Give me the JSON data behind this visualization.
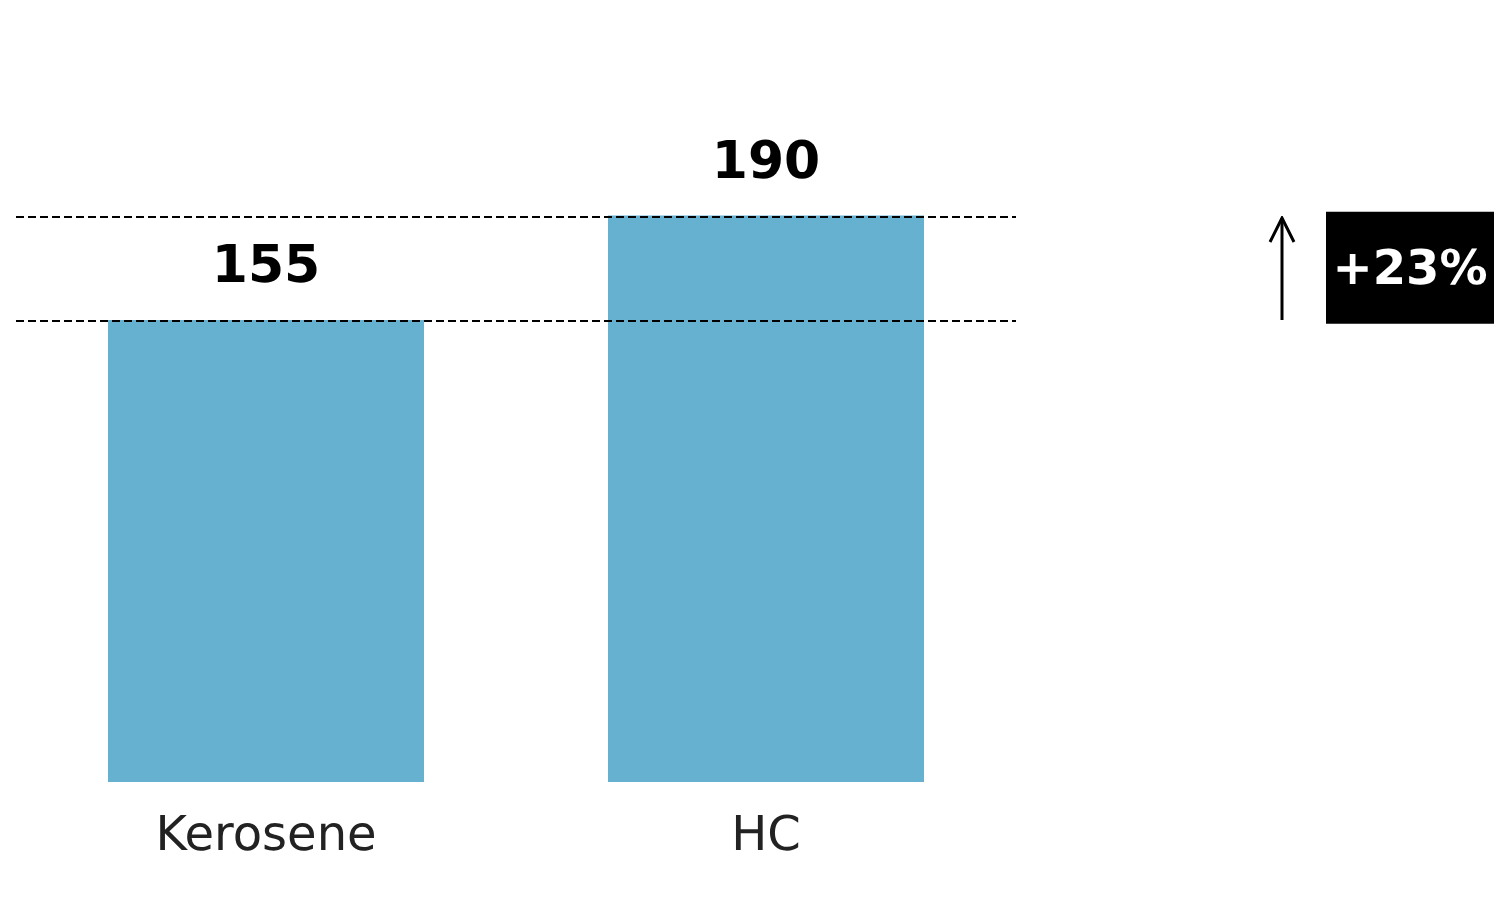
{
  "chart_data": {
    "type": "bar",
    "categories": [
      "Kerosene",
      "HC"
    ],
    "values": [
      155,
      190
    ],
    "color": "#66b0d0",
    "data_labels": true,
    "ref_lines": [
      {
        "axis": "y",
        "value": 155,
        "color": "#000000",
        "line_style": "dashed"
      },
      {
        "axis": "y",
        "value": 190,
        "color": "#000000",
        "line_style": "dashed"
      }
    ],
    "annotations": [
      "+23%"
    ]
  }
}
